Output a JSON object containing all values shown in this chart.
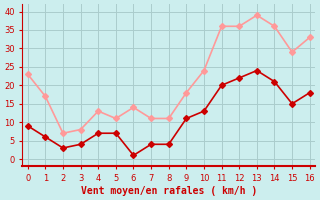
{
  "x": [
    0,
    1,
    2,
    3,
    4,
    5,
    6,
    7,
    8,
    9,
    10,
    11,
    12,
    13,
    14,
    15,
    16
  ],
  "y_moyen": [
    9,
    6,
    3,
    4,
    7,
    7,
    1,
    4,
    4,
    11,
    13,
    20,
    22,
    24,
    21,
    15,
    18
  ],
  "y_rafales": [
    23,
    17,
    7,
    8,
    13,
    11,
    14,
    11,
    11,
    18,
    24,
    36,
    36,
    39,
    36,
    29,
    33
  ],
  "color_moyen": "#cc0000",
  "color_rafales": "#ff9999",
  "bg_color": "#cceeee",
  "grid_color": "#aacccc",
  "xlabel": "Vent moyen/en rafales ( km/h )",
  "xlabel_color": "#cc0000",
  "tick_color": "#cc0000",
  "ylim": [
    -2,
    42
  ],
  "xlim": [
    -0.3,
    16.3
  ],
  "yticks": [
    0,
    5,
    10,
    15,
    20,
    25,
    30,
    35,
    40
  ],
  "xticks": [
    0,
    1,
    2,
    3,
    4,
    5,
    6,
    7,
    8,
    9,
    10,
    11,
    12,
    13,
    14,
    15,
    16
  ],
  "spine_color": "#cc0000",
  "marker": "D",
  "marker_size": 3,
  "line_width": 1.2
}
